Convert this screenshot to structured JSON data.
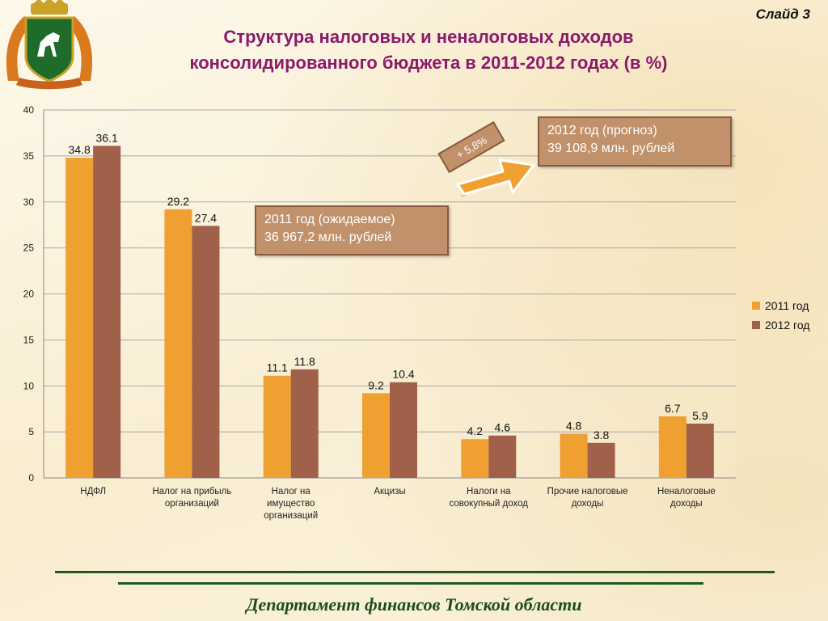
{
  "slide_label": "Слайд 3",
  "title_line1": "Структура налоговых и неналоговых доходов",
  "title_line2": "консолидированного бюджета  в 2011-2012 годах (в %)",
  "callout_2011": {
    "line1": "2011 год  (ожидаемое)",
    "line2": "36 967,2 млн. рублей"
  },
  "callout_2012": {
    "line1": "2012 год  (прогноз)",
    "line2": "39 108,9 млн. рублей"
  },
  "growth_badge": "+ 5,8%",
  "footer": "Департамент финансов Томской области",
  "colors": {
    "series_2011": "#f0a030",
    "series_2012": "#a0604a",
    "title": "#8b1a6b",
    "footer": "#1a4d1a"
  },
  "emblem_icon": "tomsk-coat-of-arms-icon",
  "chart_data": {
    "type": "bar",
    "categories": [
      "НДФЛ",
      "Налог на прибыль организаций",
      "Налог на имущество организаций",
      "Акцизы",
      "Налоги на совокупный доход",
      "Прочие налоговые доходы",
      "Неналоговые доходы"
    ],
    "category_lines": [
      [
        "НДФЛ"
      ],
      [
        "Налог на прибыль",
        "организаций"
      ],
      [
        "Налог на",
        "имущество",
        "организаций"
      ],
      [
        "Акцизы"
      ],
      [
        "Налоги на",
        "совокупный доход"
      ],
      [
        "Прочие налоговые",
        "доходы"
      ],
      [
        "Неналоговые",
        "доходы"
      ]
    ],
    "series": [
      {
        "name": "2011 год",
        "values": [
          34.8,
          29.2,
          11.1,
          9.2,
          4.2,
          4.8,
          6.7
        ]
      },
      {
        "name": "2012 год",
        "values": [
          36.1,
          27.4,
          11.8,
          10.4,
          4.6,
          3.8,
          5.9
        ]
      }
    ],
    "ylim": [
      0,
      40
    ],
    "yticks": [
      0,
      5,
      10,
      15,
      20,
      25,
      30,
      35,
      40
    ],
    "grid": true,
    "legend_position": "right"
  }
}
